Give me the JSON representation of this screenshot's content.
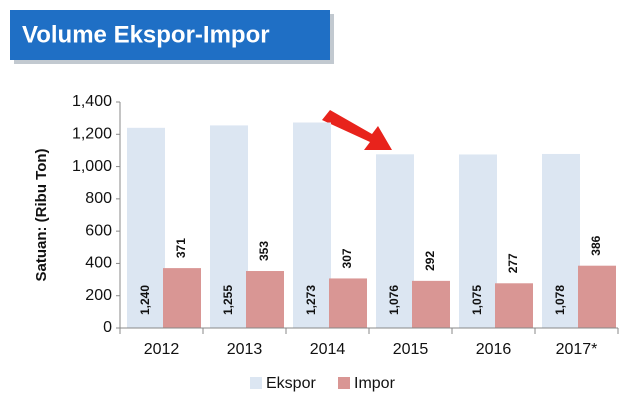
{
  "chart_data": {
    "type": "bar",
    "title": "Volume Ekspor-Impor",
    "y_label": "Satuan: (Ribu Ton)",
    "categories": [
      "2012",
      "2013",
      "2014",
      "2015",
      "2016",
      "2017*"
    ],
    "series": [
      {
        "name": "Ekspor",
        "color": "#dce6f2",
        "values": [
          1240,
          1255,
          1273,
          1076,
          1075,
          1078
        ],
        "value_labels": [
          "1,240",
          "1,255",
          "1,273",
          "1,076",
          "1,075",
          "1,078"
        ]
      },
      {
        "name": "Impor",
        "color": "#d99694",
        "values": [
          371,
          353,
          307,
          292,
          277,
          386
        ]
      }
    ],
    "ylim": [
      0,
      1400
    ],
    "yticks": [
      0,
      200,
      400,
      600,
      800,
      {
        "value": 1000,
        "label": "1,000"
      },
      {
        "value": 1200,
        "label": "1,200"
      },
      {
        "value": 1400,
        "label": "1,400"
      }
    ],
    "grid": false,
    "legend": "bottom"
  }
}
